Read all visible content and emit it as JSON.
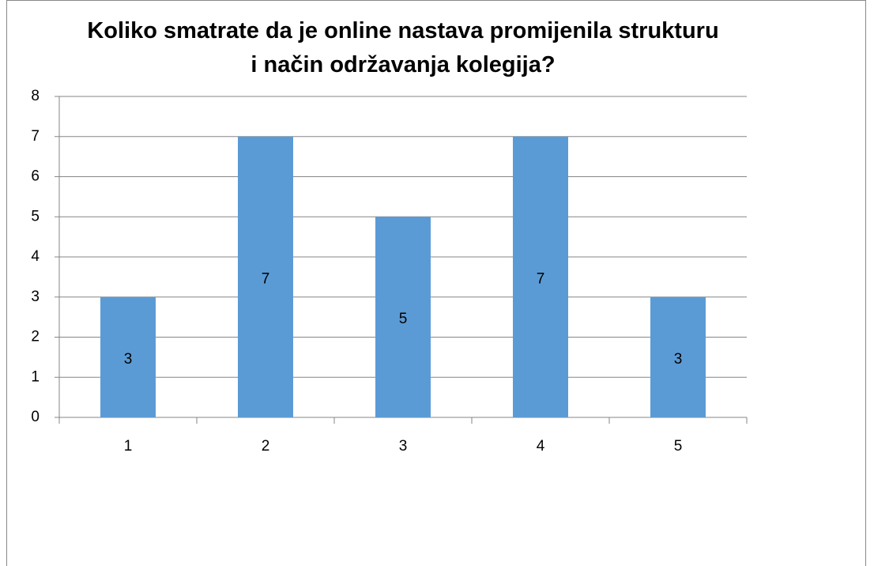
{
  "chart_data": {
    "type": "bar",
    "title": "Koliko smatrate da je online nastava promijenila strukturu i način održavanja kolegija?",
    "categories": [
      "1",
      "2",
      "3",
      "4",
      "5"
    ],
    "values": [
      3,
      7,
      5,
      7,
      3
    ],
    "color": "#5b9bd5",
    "ylim": [
      0,
      8
    ],
    "yticks": [
      0,
      1,
      2,
      3,
      4,
      5,
      6,
      7,
      8
    ],
    "grid": true
  }
}
